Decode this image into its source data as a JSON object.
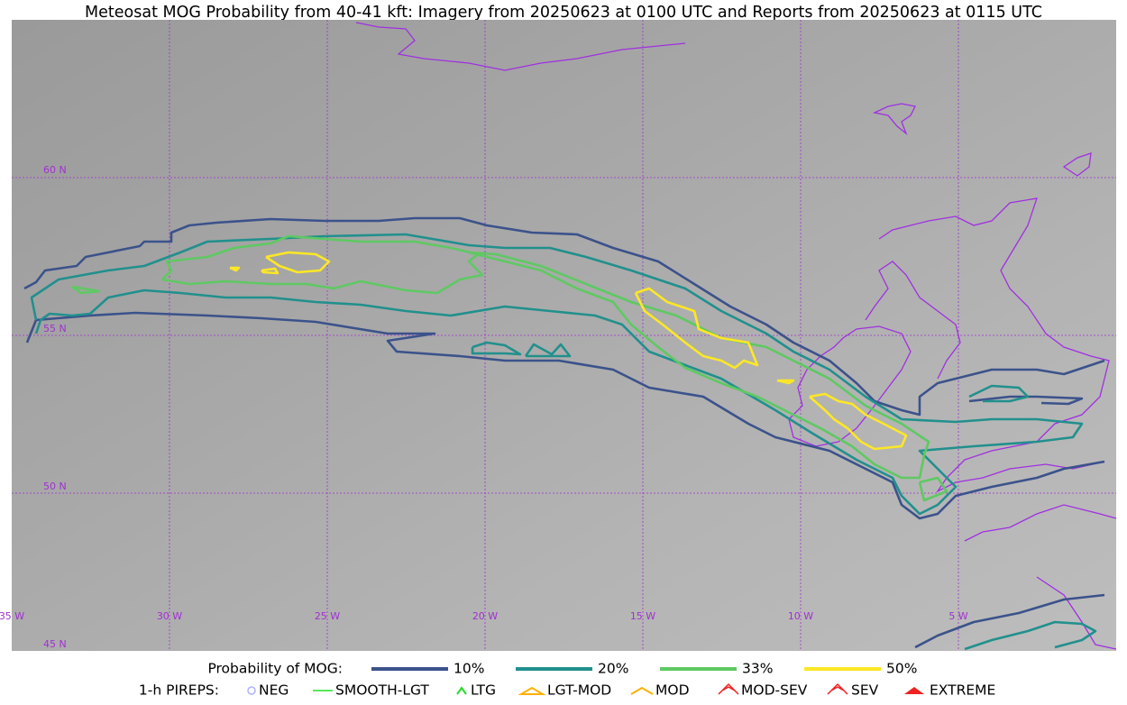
{
  "title": "Meteosat MOG Probability from 40-41 kft: Imagery from 20250623 at 0100 UTC and Reports from 20250623 at 0115 UTC",
  "grid_labels": {
    "lat": [
      "60 N",
      "55 N",
      "50 N",
      "45 N"
    ],
    "lon": [
      "35 W",
      "30 W",
      "25 W",
      "20 W",
      "15 W",
      "10 W",
      "5 W"
    ]
  },
  "legend": {
    "probability": {
      "label": "Probability of MOG:",
      "items": [
        "10%",
        "20%",
        "33%",
        "50%"
      ]
    },
    "pireps": {
      "label": "1-h PIREPS:",
      "items": [
        "NEG",
        "SMOOTH-LGT",
        "LTG",
        "LGT-MOD",
        "MOD",
        "MOD-SEV",
        "SEV",
        "EXTREME"
      ]
    }
  }
}
